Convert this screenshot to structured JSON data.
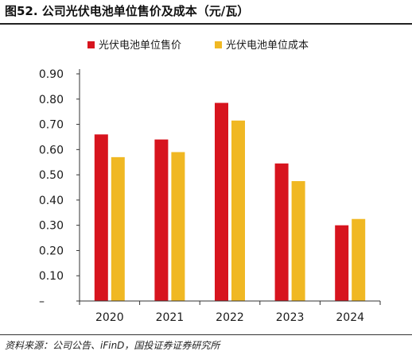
{
  "header": {
    "title": "图52. 公司光伏电池单位售价及成本（元/瓦）"
  },
  "footer": {
    "source": "资料来源：公司公告、iFinD，国投证券证券研究所"
  },
  "chart_data": {
    "type": "bar",
    "title": "",
    "xlabel": "",
    "ylabel": "",
    "categories": [
      "2020",
      "2021",
      "2022",
      "2023",
      "2024"
    ],
    "series": [
      {
        "name": "光伏电池单位售价",
        "color": "#d7141e",
        "values": [
          0.66,
          0.64,
          0.785,
          0.545,
          0.3
        ]
      },
      {
        "name": "光伏电池单位成本",
        "color": "#f0b823",
        "values": [
          0.57,
          0.59,
          0.715,
          0.475,
          0.325
        ]
      }
    ],
    "ylim": [
      0,
      0.9
    ],
    "yticks": [
      "–",
      "0.10",
      "0.20",
      "0.30",
      "0.40",
      "0.50",
      "0.60",
      "0.70",
      "0.80",
      "0.90"
    ],
    "grid": false,
    "legend": "top-left"
  }
}
